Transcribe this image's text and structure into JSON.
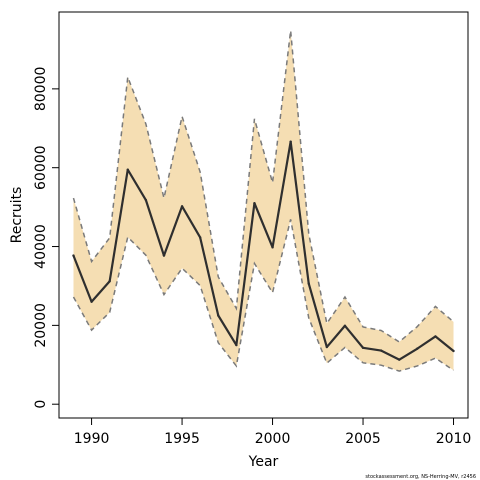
{
  "chart_data": {
    "type": "area",
    "xlabel": "Year",
    "ylabel": "Recruits",
    "xlim": [
      1988.2,
      2010.8
    ],
    "ylim": [
      -3500,
      99500
    ],
    "x_ticks": [
      1990,
      1995,
      2000,
      2005,
      2010
    ],
    "y_ticks": [
      0,
      20000,
      40000,
      60000,
      80000
    ],
    "grid": false,
    "colors": {
      "band": "#f5deb3",
      "band_edge": "#7a7a7a",
      "line": "#2f2f2f"
    },
    "x": [
      1989,
      1990,
      1991,
      1992,
      1993,
      1994,
      1995,
      1996,
      1997,
      1998,
      1999,
      2000,
      2001,
      2002,
      2003,
      2004,
      2005,
      2006,
      2007,
      2008,
      2009,
      2010
    ],
    "series": [
      {
        "role": "estimate",
        "style": "solid",
        "values": [
          37700,
          26000,
          31200,
          59500,
          51800,
          37700,
          50200,
          42300,
          22500,
          15000,
          51000,
          39800,
          66600,
          30600,
          14500,
          19900,
          14300,
          13600,
          11300,
          14100,
          17200,
          13500
        ]
      },
      {
        "role": "upper",
        "style": "dashed",
        "values": [
          52300,
          36200,
          42200,
          83000,
          71100,
          52300,
          73000,
          58900,
          32300,
          24300,
          72400,
          56200,
          94800,
          43200,
          20500,
          27200,
          19600,
          18700,
          15800,
          19700,
          24800,
          20900
        ]
      },
      {
        "role": "lower",
        "style": "dashed",
        "values": [
          27200,
          18800,
          23300,
          42400,
          37800,
          27800,
          34500,
          30100,
          15600,
          9700,
          35700,
          28300,
          46900,
          21900,
          10400,
          14400,
          10500,
          9900,
          8400,
          9700,
          11700,
          8600
        ]
      }
    ]
  },
  "source_note": "stockassessment.org, NS-Herring-MV, r2456"
}
